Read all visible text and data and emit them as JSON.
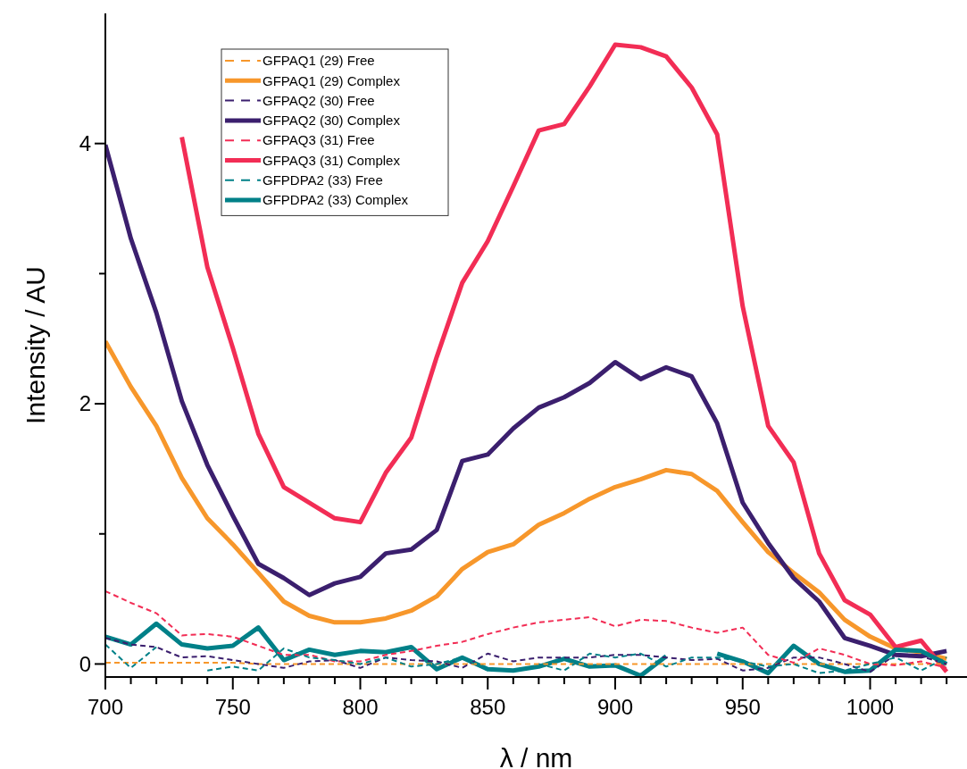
{
  "chart_data": {
    "type": "line",
    "xlabel": "λ / nm",
    "ylabel": "Intensity / AU",
    "x": [
      700,
      710,
      720,
      730,
      740,
      750,
      760,
      770,
      780,
      790,
      800,
      810,
      820,
      830,
      840,
      850,
      860,
      870,
      880,
      890,
      900,
      910,
      920,
      930,
      940,
      950,
      960,
      970,
      980,
      990,
      1000,
      1010,
      1020,
      1030
    ],
    "xlim": [
      700,
      1038
    ],
    "xticks": [
      700,
      {
        "value": 710,
        "label": null
      },
      {
        "value": 720,
        "label": null
      },
      {
        "value": 730,
        "label": null
      },
      {
        "value": 740,
        "label": null
      },
      750,
      {
        "value": 760,
        "label": null
      },
      {
        "value": 770,
        "label": null
      },
      {
        "value": 780,
        "label": null
      },
      {
        "value": 790,
        "label": null
      },
      800,
      {
        "value": 810,
        "label": null
      },
      {
        "value": 820,
        "label": null
      },
      {
        "value": 830,
        "label": null
      },
      {
        "value": 840,
        "label": null
      },
      850,
      {
        "value": 860,
        "label": null
      },
      {
        "value": 870,
        "label": null
      },
      {
        "value": 880,
        "label": null
      },
      {
        "value": 890,
        "label": null
      },
      900,
      {
        "value": 910,
        "label": null
      },
      {
        "value": 920,
        "label": null
      },
      {
        "value": 930,
        "label": null
      },
      {
        "value": 940,
        "label": null
      },
      950,
      {
        "value": 960,
        "label": null
      },
      {
        "value": 970,
        "label": null
      },
      {
        "value": 980,
        "label": null
      },
      {
        "value": 990,
        "label": null
      },
      1000,
      {
        "value": 1010,
        "label": null
      },
      {
        "value": 1020,
        "label": null
      },
      {
        "value": 1030,
        "label": null
      }
    ],
    "ylim": [
      -0.1,
      5
    ],
    "yticks": [
      0,
      {
        "value": 1,
        "label": null
      },
      2,
      {
        "value": 3,
        "label": null
      },
      4
    ],
    "legend": "top left",
    "grid": false,
    "series": [
      {
        "name": "GFPAQ1 (29) Free",
        "color": "#f7972b",
        "line_style": "dashed",
        "values": [
          0.01,
          0.01,
          0.01,
          0.01,
          0.01,
          0.01,
          0.0,
          0.0,
          0.0,
          0.0,
          0.0,
          0.0,
          0.0,
          0.0,
          0.0,
          0.0,
          0.0,
          0.0,
          0.0,
          0.0,
          0.0,
          0.0,
          0.0,
          0.0,
          0.0,
          0.0,
          0.0,
          0.0,
          0.0,
          0.0,
          0.0,
          0.0,
          0.0,
          0.0
        ]
      },
      {
        "name": "GFPAQ1 (29) Complex",
        "color": "#f7972b",
        "line_style": "solid",
        "values": [
          2.48,
          2.13,
          1.83,
          1.43,
          1.12,
          0.92,
          0.7,
          0.48,
          0.37,
          0.32,
          0.32,
          0.35,
          0.41,
          0.52,
          0.73,
          0.86,
          0.92,
          1.07,
          1.16,
          1.27,
          1.36,
          1.42,
          1.49,
          1.46,
          1.33,
          1.09,
          0.86,
          0.7,
          0.55,
          0.34,
          0.21,
          0.12,
          0.09,
          0.04
        ]
      },
      {
        "name": "GFPAQ2 (30) Free",
        "color": "#3b1f6e",
        "line_style": "dashed",
        "values": [
          0.2,
          0.15,
          0.13,
          0.05,
          0.06,
          0.03,
          0.0,
          -0.03,
          0.02,
          0.03,
          -0.03,
          0.05,
          0.03,
          0.02,
          -0.03,
          0.08,
          0.02,
          0.05,
          0.05,
          0.05,
          0.07,
          0.07,
          0.05,
          0.03,
          0.04,
          -0.05,
          -0.03,
          0.05,
          0.05,
          0.0,
          -0.06,
          0.07,
          0.06,
          0.0
        ]
      },
      {
        "name": "GFPAQ2 (30) Complex",
        "color": "#3b1f6e",
        "line_style": "solid",
        "values": [
          3.99,
          3.27,
          2.7,
          2.02,
          1.53,
          1.14,
          0.77,
          0.66,
          0.53,
          0.62,
          0.67,
          0.85,
          0.88,
          1.03,
          1.56,
          1.61,
          1.81,
          1.97,
          2.05,
          2.16,
          2.32,
          2.19,
          2.28,
          2.21,
          1.85,
          1.24,
          0.93,
          0.66,
          0.48,
          0.2,
          0.14,
          0.07,
          0.06,
          0.1
        ]
      },
      {
        "name": "GFPAQ3 (31) Free",
        "color": "#f22d55",
        "line_style": "dashed",
        "values": [
          0.56,
          0.47,
          0.39,
          0.22,
          0.23,
          0.21,
          0.14,
          0.07,
          0.07,
          0.02,
          0.02,
          0.07,
          0.1,
          0.14,
          0.17,
          0.23,
          0.28,
          0.32,
          0.34,
          0.36,
          0.29,
          0.34,
          0.33,
          0.28,
          0.24,
          0.28,
          0.07,
          0.01,
          0.12,
          0.07,
          0.0,
          -0.01,
          0.02,
          -0.03
        ]
      },
      {
        "name": "GFPAQ3 (31) Complex",
        "color": "#f22d55",
        "line_style": "solid",
        "values": [
          null,
          null,
          null,
          4.05,
          3.05,
          2.43,
          1.77,
          1.36,
          1.24,
          1.12,
          1.09,
          1.47,
          1.74,
          2.36,
          2.93,
          3.25,
          3.67,
          4.1,
          4.15,
          4.44,
          4.76,
          4.74,
          4.67,
          4.43,
          4.07,
          2.75,
          1.83,
          1.55,
          0.85,
          0.49,
          0.38,
          0.13,
          0.18,
          -0.06
        ]
      },
      {
        "name": "GFPDPA2 (33) Free",
        "color": "#008088",
        "line_style": "dashed",
        "values": [
          0.15,
          -0.03,
          0.13,
          null,
          -0.05,
          -0.02,
          -0.05,
          0.12,
          0.05,
          0.03,
          0.0,
          0.05,
          -0.02,
          0.0,
          0.05,
          -0.05,
          null,
          0.0,
          -0.05,
          0.08,
          0.05,
          0.08,
          -0.02,
          0.05,
          0.05,
          0.02,
          -0.02,
          0.0,
          -0.07,
          -0.05,
          0.0,
          0.05,
          -0.05,
          0.05
        ]
      },
      {
        "name": "GFPDPA2 (33) Complex",
        "color": "#008088",
        "line_style": "solid",
        "values": [
          0.21,
          0.15,
          0.31,
          0.15,
          0.12,
          0.14,
          0.28,
          0.03,
          0.11,
          0.07,
          0.1,
          0.09,
          0.13,
          -0.04,
          0.05,
          -0.04,
          -0.05,
          -0.02,
          0.04,
          -0.02,
          -0.01,
          -0.09,
          0.06,
          null,
          0.08,
          0.02,
          -0.07,
          0.14,
          0.0,
          -0.06,
          -0.05,
          0.11,
          0.1,
          0.0
        ]
      }
    ]
  }
}
